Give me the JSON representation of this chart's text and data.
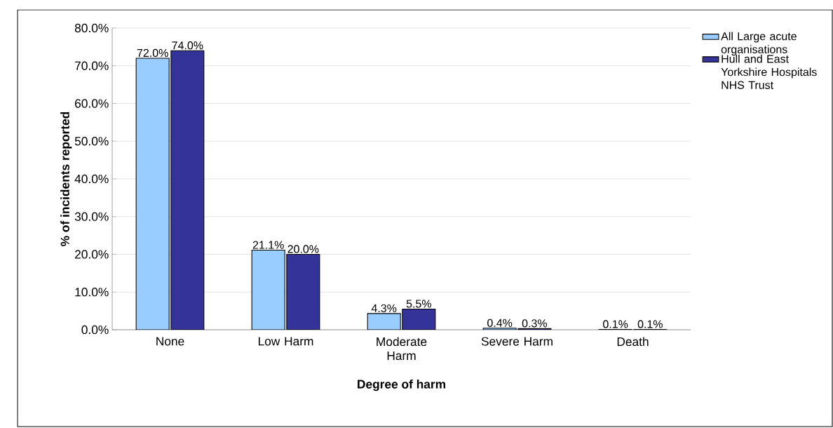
{
  "chart_data": {
    "type": "bar",
    "xlabel": "Degree of harm",
    "ylabel": "% of incidents reported",
    "categories": [
      "None",
      "Low Harm",
      "Moderate Harm",
      "Severe Harm",
      "Death"
    ],
    "series": [
      {
        "name": "All Large acute organisations",
        "color": "#99ccff",
        "values": [
          72.0,
          21.1,
          4.3,
          0.4,
          0.1
        ],
        "value_labels": [
          "72.0%",
          "21.1%",
          "4.3%",
          "0.4%",
          "0.1%"
        ]
      },
      {
        "name": "Hull and East Yorkshire Hospitals NHS Trust",
        "color": "#333399",
        "values": [
          74.0,
          20.0,
          5.5,
          0.3,
          0.1
        ],
        "value_labels": [
          "74.0%",
          "20.0%",
          "5.5%",
          "0.3%",
          "0.1%"
        ]
      }
    ],
    "ylim": [
      0,
      80
    ],
    "yticks": [
      {
        "value": 0,
        "label": "0.0%"
      },
      {
        "value": 10,
        "label": "10.0%"
      },
      {
        "value": 20,
        "label": "20.0%"
      },
      {
        "value": 30,
        "label": "30.0%"
      },
      {
        "value": 40,
        "label": "40.0%"
      },
      {
        "value": 50,
        "label": "50.0%"
      },
      {
        "value": 60,
        "label": "60.0%"
      },
      {
        "value": 70,
        "label": "70.0%"
      },
      {
        "value": 80,
        "label": "80.0%"
      }
    ],
    "grid": "y",
    "legend": "right"
  }
}
